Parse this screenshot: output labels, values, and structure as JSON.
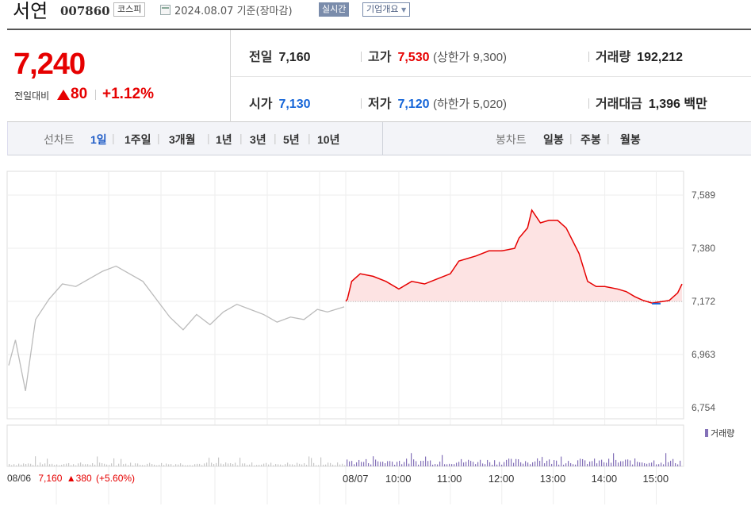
{
  "header": {
    "stock_name": "서연",
    "stock_code": "007860",
    "market": "코스피",
    "date": "2024.08.07",
    "date_suffix": "기준(장마감)",
    "realtime_btn": "실시간",
    "overview_btn": "기업개요"
  },
  "quote": {
    "price": "7,240",
    "change_label": "전일대비",
    "change": "80",
    "change_pct": "+1.12%",
    "prev_label": "전일",
    "prev": "7,160",
    "high_label": "고가",
    "high": "7,530",
    "upper_limit": "(상한가 9,300)",
    "volume_label": "거래량",
    "volume": "192,212",
    "open_label": "시가",
    "open": "7,130",
    "low_label": "저가",
    "low": "7,120",
    "lower_limit": "(하한가 5,020)",
    "amount_label": "거래대금",
    "amount": "1,396",
    "amount_unit": "백만"
  },
  "tabs": {
    "line_label": "선차트",
    "line": [
      "1일",
      "1주일",
      "3개월",
      "1년",
      "3년",
      "5년",
      "10년"
    ],
    "candle_label": "봉차트",
    "candle": [
      "일봉",
      "주봉",
      "월봉"
    ]
  },
  "colors": {
    "up": "#e60000",
    "down": "#1565d8",
    "prev_line": "#bbbbbb",
    "volume": "#8471b8"
  },
  "chart_data": {
    "type": "line",
    "y_ticks": [
      "7,589",
      "7,380",
      "7,172",
      "6,963",
      "6,754"
    ],
    "ylim": [
      6754,
      7589
    ],
    "base_price": 7160,
    "x_labels": [
      "08/06",
      "08/07",
      "10:00",
      "11:00",
      "12:00",
      "13:00",
      "14:00",
      "15:00"
    ],
    "prev_day_info": {
      "date": "08/06",
      "price": "7,160",
      "change": "380",
      "pct": "(+5.60%)"
    },
    "volume_legend": "거래량",
    "prev_day_series": [
      [
        0,
        6920
      ],
      [
        0.02,
        7020
      ],
      [
        0.05,
        6820
      ],
      [
        0.08,
        7100
      ],
      [
        0.12,
        7180
      ],
      [
        0.16,
        7240
      ],
      [
        0.2,
        7230
      ],
      [
        0.24,
        7260
      ],
      [
        0.28,
        7290
      ],
      [
        0.32,
        7310
      ],
      [
        0.36,
        7280
      ],
      [
        0.4,
        7250
      ],
      [
        0.44,
        7180
      ],
      [
        0.48,
        7110
      ],
      [
        0.52,
        7060
      ],
      [
        0.56,
        7120
      ],
      [
        0.6,
        7080
      ],
      [
        0.64,
        7130
      ],
      [
        0.68,
        7160
      ],
      [
        0.72,
        7140
      ],
      [
        0.76,
        7120
      ],
      [
        0.8,
        7090
      ],
      [
        0.84,
        7110
      ],
      [
        0.88,
        7100
      ],
      [
        0.92,
        7140
      ],
      [
        0.95,
        7130
      ],
      [
        1.0,
        7150
      ]
    ],
    "today_series": [
      [
        "08:50",
        7172
      ],
      [
        "09:00",
        7180
      ],
      [
        "09:05",
        7250
      ],
      [
        "09:15",
        7280
      ],
      [
        "09:30",
        7270
      ],
      [
        "09:45",
        7250
      ],
      [
        "10:00",
        7220
      ],
      [
        "10:15",
        7250
      ],
      [
        "10:30",
        7240
      ],
      [
        "10:45",
        7260
      ],
      [
        "11:00",
        7280
      ],
      [
        "11:10",
        7330
      ],
      [
        "11:30",
        7350
      ],
      [
        "11:45",
        7370
      ],
      [
        "12:00",
        7370
      ],
      [
        "12:15",
        7380
      ],
      [
        "12:20",
        7420
      ],
      [
        "12:30",
        7460
      ],
      [
        "12:35",
        7530
      ],
      [
        "12:45",
        7480
      ],
      [
        "12:55",
        7490
      ],
      [
        "13:05",
        7490
      ],
      [
        "13:15",
        7460
      ],
      [
        "13:30",
        7360
      ],
      [
        "13:40",
        7250
      ],
      [
        "13:50",
        7230
      ],
      [
        "14:00",
        7230
      ],
      [
        "14:15",
        7220
      ],
      [
        "14:25",
        7210
      ],
      [
        "14:35",
        7190
      ],
      [
        "14:45",
        7175
      ],
      [
        "14:55",
        7165
      ],
      [
        "15:05",
        7170
      ],
      [
        "15:15",
        7175
      ],
      [
        "15:25",
        7205
      ],
      [
        "15:30",
        7240
      ]
    ]
  }
}
